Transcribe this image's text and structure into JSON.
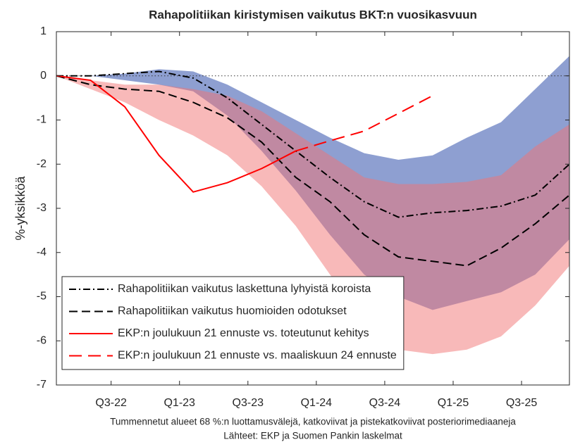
{
  "chart_data": {
    "type": "line",
    "title": "Rahapolitiikan kiristymisen vaikutus BKT:n vuosikasvuun",
    "y_label": "%-yksikköä",
    "footnotes": [
      "Tummennetut alueet 68 %:n luottamusvälejä, katkoviivat ja pistekatkoviivat posteriorimediaaneja",
      "Lähteet: EKP ja Suomen Pankin laskelmat"
    ],
    "x": [
      0,
      1,
      2,
      3,
      4,
      5,
      6,
      7,
      8,
      9,
      10,
      11,
      12,
      13,
      14,
      15
    ],
    "xlim": [
      0,
      15
    ],
    "xticks": [
      {
        "value": 1.6,
        "label": "Q3-22"
      },
      {
        "value": 3.6,
        "label": "Q1-23"
      },
      {
        "value": 5.6,
        "label": "Q3-23"
      },
      {
        "value": 7.6,
        "label": "Q1-24"
      },
      {
        "value": 9.6,
        "label": "Q3-24"
      },
      {
        "value": 11.6,
        "label": "Q1-25"
      },
      {
        "value": 13.6,
        "label": "Q3-25"
      }
    ],
    "ylim": [
      -7,
      1
    ],
    "yticks": [
      -7,
      -6,
      -5,
      -4,
      -3,
      -2,
      -1,
      0,
      1
    ],
    "hlines": [
      0
    ],
    "legend": "lower left",
    "bands": [
      {
        "color": "#8e9fd1",
        "opacity": 1,
        "upper": [
          0,
          0,
          0.05,
          0.15,
          0.1,
          -0.2,
          -0.6,
          -1.0,
          -1.4,
          -1.75,
          -1.9,
          -1.8,
          -1.4,
          -1.05,
          -0.3,
          0.45
        ],
        "lower": [
          0,
          0,
          -0.1,
          -0.2,
          -0.35,
          -0.9,
          -1.7,
          -2.6,
          -3.6,
          -4.5,
          -5.0,
          -5.3,
          -5.1,
          -4.9,
          -4.5,
          -3.7
        ]
      },
      {
        "color": "#f17373",
        "opacity": 0.5,
        "upper": [
          0,
          -0.1,
          -0.2,
          -0.2,
          -0.3,
          -0.45,
          -0.8,
          -1.3,
          -1.8,
          -2.3,
          -2.45,
          -2.45,
          -2.4,
          -2.25,
          -1.6,
          -1.1
        ],
        "lower": [
          0,
          -0.3,
          -0.6,
          -1.0,
          -1.35,
          -1.8,
          -2.5,
          -3.4,
          -4.5,
          -5.5,
          -6.2,
          -6.3,
          -6.2,
          -5.9,
          -5.2,
          -4.3
        ]
      }
    ],
    "series": [
      {
        "name": "Rahapolitiikan vaikutus laskettuna lyhyistä koroista",
        "color": "#000000",
        "linestyle": "dashdot",
        "values": [
          0,
          0,
          0.05,
          0.1,
          -0.05,
          -0.5,
          -1.1,
          -1.7,
          -2.3,
          -2.85,
          -3.2,
          -3.1,
          -3.05,
          -2.95,
          -2.7,
          -2.0
        ]
      },
      {
        "name": "Rahapolitiikan vaikutus huomioiden odotukset",
        "color": "#000000",
        "linestyle": "dashed",
        "values": [
          0,
          -0.2,
          -0.3,
          -0.35,
          -0.6,
          -0.95,
          -1.5,
          -2.3,
          -2.85,
          -3.6,
          -4.1,
          -4.2,
          -4.3,
          -3.9,
          -3.35,
          -2.7
        ]
      },
      {
        "name": "EKP:n joulukuun 21 ennuste vs. toteutunut kehitys",
        "color": "#ff0000",
        "linestyle": "solid",
        "values": [
          0,
          -0.1,
          -0.7,
          -1.8,
          -2.63,
          -2.42,
          -2.1,
          -1.7,
          null,
          null,
          null,
          null,
          null,
          null,
          null,
          null
        ]
      },
      {
        "name": "EKP:n joulukuun 21 ennuste vs. maaliskuun 24 ennuste",
        "color": "#ff0000",
        "linestyle": "longdash",
        "values": [
          null,
          null,
          null,
          null,
          null,
          null,
          null,
          -1.7,
          -1.47,
          -1.25,
          -0.85,
          -0.45,
          null,
          null,
          null,
          null
        ]
      }
    ]
  }
}
